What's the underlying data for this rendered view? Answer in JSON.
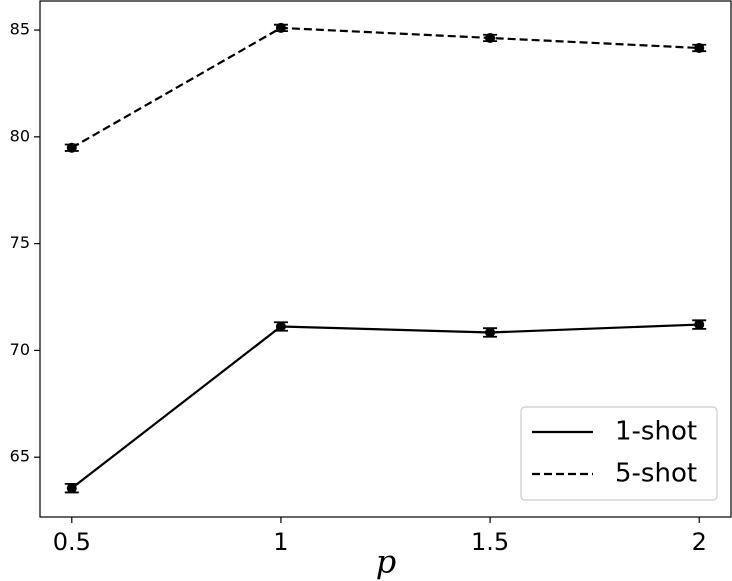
{
  "chart_data": {
    "type": "line",
    "xlabel": "p",
    "x": [
      0.5,
      1,
      1.5,
      2
    ],
    "series": [
      {
        "name": "1-shot",
        "color": "#000000",
        "linestyle": "solid",
        "values": [
          63.55,
          71.12,
          70.84,
          71.21
        ],
        "errors": [
          0.2,
          0.2,
          0.2,
          0.2
        ]
      },
      {
        "name": "5-shot",
        "color": "#000000",
        "linestyle": "dashed",
        "values": [
          79.49,
          85.1,
          84.63,
          84.16
        ],
        "errors": [
          0.15,
          0.15,
          0.15,
          0.15
        ]
      }
    ],
    "xlim": [
      0.424,
      2.076
    ],
    "xticks": [
      0.5,
      1,
      1.5,
      2
    ],
    "ylim": [
      62.2,
      86.36
    ],
    "yticks": [
      65,
      70,
      75,
      80,
      85
    ],
    "legend": "lower right"
  }
}
